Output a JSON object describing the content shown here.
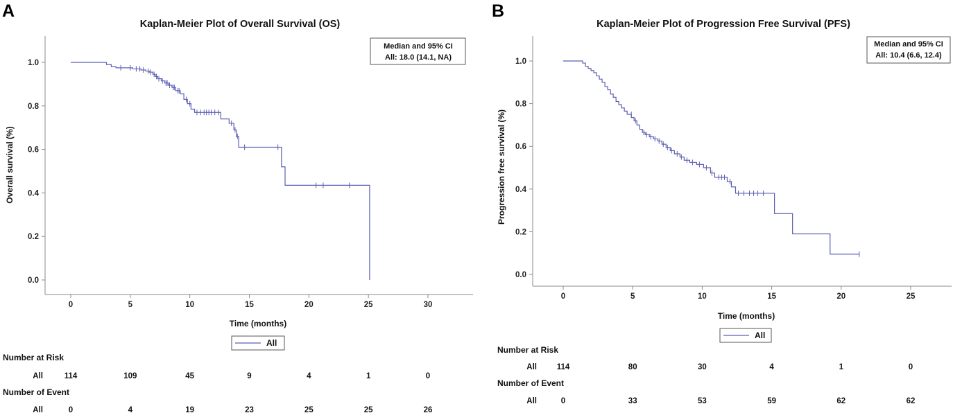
{
  "accent_color": "#5b5fb3",
  "chart_data": [
    {
      "panel": "A",
      "type": "line",
      "subtype": "kaplan-meier",
      "title": "Kaplan-Meier Plot of Overall Survival (OS)",
      "xlabel": "Time (months)",
      "ylabel": "Overall survival (%)",
      "xlim": [
        -2,
        33
      ],
      "ylim": [
        -0.06,
        1.12
      ],
      "xticks": [
        0,
        5,
        10,
        15,
        20,
        25,
        30
      ],
      "yticks": [
        0.0,
        0.2,
        0.4,
        0.6,
        0.8,
        1.0
      ],
      "ytick_labels": [
        "0.0",
        "0.2",
        "0.4",
        "0.6",
        "0.8",
        "1.0"
      ],
      "annotation_title": "Median and 95% CI",
      "annotation_value": "All: 18.0 (14.1, NA)",
      "legend": "All",
      "series": [
        {
          "name": "All",
          "color": "#5b5fb3",
          "steps": [
            [
              0,
              1.0
            ],
            [
              3.0,
              0.99
            ],
            [
              3.4,
              0.98
            ],
            [
              3.8,
              0.975
            ],
            [
              5.2,
              0.97
            ],
            [
              5.9,
              0.965
            ],
            [
              6.3,
              0.96
            ],
            [
              6.6,
              0.955
            ],
            [
              6.9,
              0.945
            ],
            [
              7.1,
              0.935
            ],
            [
              7.3,
              0.925
            ],
            [
              7.6,
              0.915
            ],
            [
              7.9,
              0.905
            ],
            [
              8.2,
              0.895
            ],
            [
              8.5,
              0.885
            ],
            [
              8.8,
              0.87
            ],
            [
              9.2,
              0.855
            ],
            [
              9.5,
              0.83
            ],
            [
              9.8,
              0.81
            ],
            [
              10.1,
              0.785
            ],
            [
              10.4,
              0.77
            ],
            [
              12.6,
              0.74
            ],
            [
              13.3,
              0.72
            ],
            [
              13.7,
              0.69
            ],
            [
              13.9,
              0.66
            ],
            [
              14.1,
              0.61
            ],
            [
              17.7,
              0.52
            ],
            [
              18.0,
              0.435
            ],
            [
              25.1,
              0.0
            ]
          ],
          "end": 25.1,
          "censored": [
            [
              4.2,
              0.975
            ],
            [
              5.0,
              0.975
            ],
            [
              5.5,
              0.97
            ],
            [
              5.8,
              0.97
            ],
            [
              6.1,
              0.965
            ],
            [
              6.5,
              0.96
            ],
            [
              6.7,
              0.955
            ],
            [
              7.0,
              0.945
            ],
            [
              7.2,
              0.935
            ],
            [
              7.4,
              0.925
            ],
            [
              7.7,
              0.915
            ],
            [
              8.0,
              0.905
            ],
            [
              8.1,
              0.905
            ],
            [
              8.3,
              0.895
            ],
            [
              8.6,
              0.885
            ],
            [
              8.7,
              0.885
            ],
            [
              9.0,
              0.87
            ],
            [
              9.1,
              0.87
            ],
            [
              9.7,
              0.83
            ],
            [
              10.0,
              0.81
            ],
            [
              10.6,
              0.77
            ],
            [
              10.9,
              0.77
            ],
            [
              11.2,
              0.77
            ],
            [
              11.4,
              0.77
            ],
            [
              11.6,
              0.77
            ],
            [
              11.8,
              0.77
            ],
            [
              12.1,
              0.77
            ],
            [
              12.4,
              0.77
            ],
            [
              13.5,
              0.72
            ],
            [
              13.8,
              0.69
            ],
            [
              14.0,
              0.66
            ],
            [
              14.6,
              0.61
            ],
            [
              17.4,
              0.61
            ],
            [
              20.6,
              0.435
            ],
            [
              21.2,
              0.435
            ],
            [
              23.4,
              0.435
            ]
          ]
        }
      ],
      "risk_table": {
        "heading": "Number at Risk",
        "row_label": "All",
        "times": [
          0,
          5,
          10,
          15,
          20,
          25,
          30
        ],
        "values": [
          "114",
          "109",
          "45",
          "9",
          "4",
          "1",
          "0"
        ]
      },
      "event_table": {
        "heading": "Number of Event",
        "row_label": "All",
        "times": [
          0,
          5,
          10,
          15,
          20,
          25,
          30
        ],
        "values": [
          "0",
          "4",
          "19",
          "23",
          "25",
          "25",
          "26"
        ]
      }
    },
    {
      "panel": "B",
      "type": "line",
      "subtype": "kaplan-meier",
      "title": "Kaplan-Meier Plot of Progression Free Survival (PFS)",
      "xlabel": "Time (months)",
      "ylabel": "Progression free survival (%)",
      "xlim": [
        -2.5,
        28
      ],
      "ylim": [
        -0.06,
        1.12
      ],
      "xticks": [
        0,
        5,
        10,
        15,
        20,
        25
      ],
      "yticks": [
        0.0,
        0.2,
        0.4,
        0.6,
        0.8,
        1.0
      ],
      "ytick_labels": [
        "0.0",
        "0.2",
        "0.4",
        "0.6",
        "0.8",
        "1.0"
      ],
      "annotation_title": "Median and 95% CI",
      "annotation_value": "All: 10.4 (6.6, 12.4)",
      "legend": "All",
      "series": [
        {
          "name": "All",
          "color": "#5b5fb3",
          "steps": [
            [
              0,
              1.0
            ],
            [
              1.4,
              0.99
            ],
            [
              1.6,
              0.975
            ],
            [
              1.8,
              0.965
            ],
            [
              2.0,
              0.955
            ],
            [
              2.2,
              0.945
            ],
            [
              2.4,
              0.93
            ],
            [
              2.6,
              0.915
            ],
            [
              2.8,
              0.9
            ],
            [
              3.0,
              0.88
            ],
            [
              3.2,
              0.865
            ],
            [
              3.4,
              0.845
            ],
            [
              3.6,
              0.83
            ],
            [
              3.8,
              0.81
            ],
            [
              4.0,
              0.795
            ],
            [
              4.2,
              0.78
            ],
            [
              4.4,
              0.765
            ],
            [
              4.6,
              0.75
            ],
            [
              4.9,
              0.735
            ],
            [
              5.1,
              0.72
            ],
            [
              5.3,
              0.7
            ],
            [
              5.5,
              0.68
            ],
            [
              5.7,
              0.665
            ],
            [
              5.9,
              0.655
            ],
            [
              6.2,
              0.645
            ],
            [
              6.5,
              0.635
            ],
            [
              6.8,
              0.625
            ],
            [
              7.1,
              0.61
            ],
            [
              7.4,
              0.595
            ],
            [
              7.7,
              0.58
            ],
            [
              8.0,
              0.565
            ],
            [
              8.4,
              0.55
            ],
            [
              8.7,
              0.535
            ],
            [
              9.1,
              0.525
            ],
            [
              9.6,
              0.515
            ],
            [
              10.1,
              0.5
            ],
            [
              10.6,
              0.475
            ],
            [
              10.9,
              0.455
            ],
            [
              11.8,
              0.435
            ],
            [
              12.1,
              0.41
            ],
            [
              12.4,
              0.38
            ],
            [
              15.2,
              0.285
            ],
            [
              16.5,
              0.19
            ],
            [
              19.2,
              0.095
            ]
          ],
          "end": 21.3,
          "censored": [
            [
              4.9,
              0.75
            ],
            [
              5.2,
              0.72
            ],
            [
              5.8,
              0.665
            ],
            [
              6.0,
              0.655
            ],
            [
              6.3,
              0.645
            ],
            [
              6.6,
              0.635
            ],
            [
              6.9,
              0.625
            ],
            [
              7.2,
              0.61
            ],
            [
              7.5,
              0.595
            ],
            [
              7.8,
              0.58
            ],
            [
              8.2,
              0.565
            ],
            [
              8.5,
              0.55
            ],
            [
              8.9,
              0.535
            ],
            [
              9.3,
              0.525
            ],
            [
              9.8,
              0.515
            ],
            [
              10.3,
              0.5
            ],
            [
              10.7,
              0.475
            ],
            [
              11.2,
              0.455
            ],
            [
              11.4,
              0.455
            ],
            [
              11.6,
              0.455
            ],
            [
              12.0,
              0.435
            ],
            [
              12.6,
              0.38
            ],
            [
              13.0,
              0.38
            ],
            [
              13.4,
              0.38
            ],
            [
              13.7,
              0.38
            ],
            [
              14.0,
              0.38
            ],
            [
              14.4,
              0.38
            ],
            [
              21.3,
              0.095
            ]
          ]
        }
      ],
      "risk_table": {
        "heading": "Number at Risk",
        "row_label": "All",
        "times": [
          0,
          5,
          10,
          15,
          20,
          25
        ],
        "values": [
          "114",
          "80",
          "30",
          "4",
          "1",
          "0"
        ]
      },
      "event_table": {
        "heading": "Number of Event",
        "row_label": "All",
        "times": [
          0,
          5,
          10,
          15,
          20,
          25
        ],
        "values": [
          "0",
          "33",
          "53",
          "59",
          "62",
          "62"
        ]
      }
    }
  ]
}
